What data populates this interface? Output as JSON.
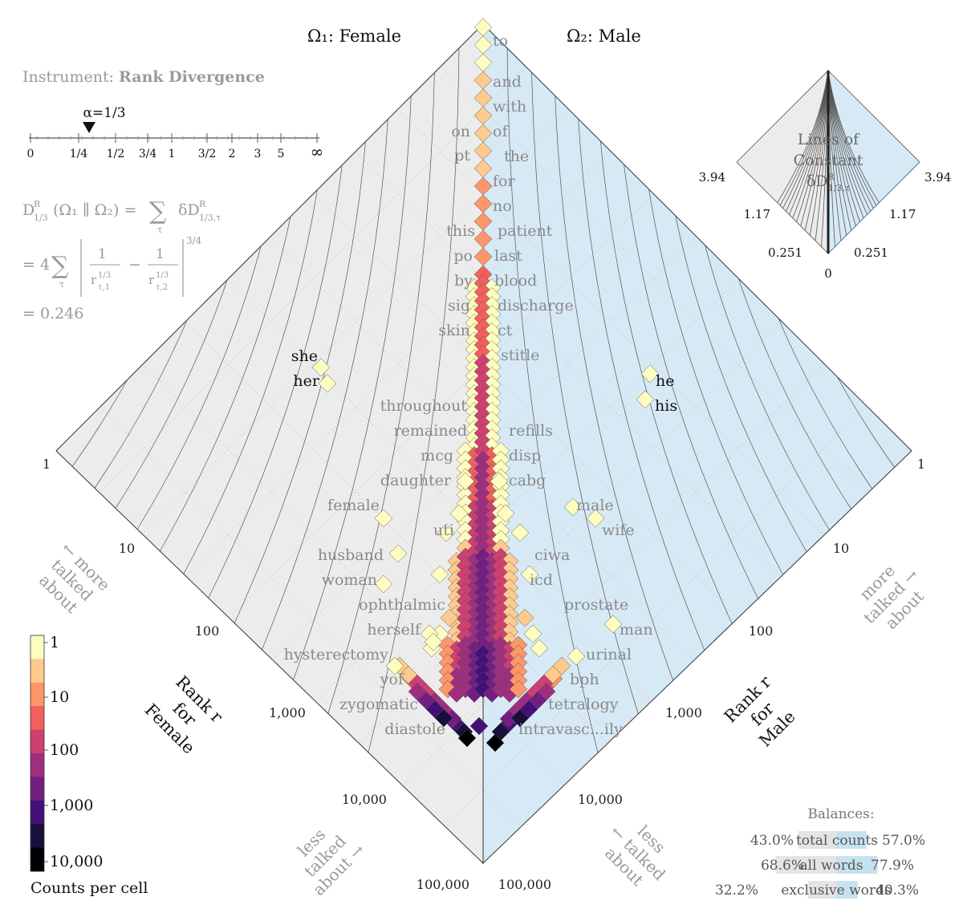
{
  "chart_data": {
    "type": "allotaxonograph",
    "titles": {
      "left": "Ω₁: Female",
      "right": "Ω₂: Male"
    },
    "instrument": {
      "prefix": "Instrument:",
      "name": "Rank Divergence"
    },
    "alpha": {
      "label": "α=1/3",
      "ticks": [
        "0",
        "1/4",
        "1/2",
        "3/4",
        "1",
        "3/2",
        "2",
        "3",
        "5",
        "∞"
      ],
      "value": "1/3"
    },
    "formula": {
      "line1": "D^R_1/3(Ω₁ ‖ Ω₂) = Σ_τ δD^R_1/3,τ",
      "line2": "= 4 Σ_τ | 1/r_τ,1^(1/3) − 1/r_τ,2^(1/3) |^(3/4)",
      "result": "= 0.246"
    },
    "axes": {
      "left_label": [
        "Rank r",
        "for",
        "Female"
      ],
      "right_label": [
        "Rank r",
        "for",
        "Male"
      ],
      "tick_labels": [
        "1",
        "10",
        "100",
        "1,000",
        "10,000",
        "100,000"
      ],
      "more_left": [
        "← more",
        "talked",
        "about"
      ],
      "more_right": [
        "more",
        "talked →",
        "about"
      ],
      "less_left": [
        "less",
        "talked",
        "about →"
      ],
      "less_right": [
        "less",
        "← talked",
        "about"
      ]
    },
    "left_words": [
      "on",
      "pt",
      "this",
      "po",
      "by",
      "sig",
      "skin",
      "she",
      "her",
      "throughout",
      "remained",
      "mcg",
      "daughter",
      "female",
      "uti",
      "husband",
      "woman",
      "ophthalmic",
      "herself",
      "hysterectomy",
      "yof",
      "zygomatic",
      "diastole"
    ],
    "right_words": [
      "to",
      "and",
      "with",
      "of",
      "the",
      "for",
      "no",
      "patient",
      "last",
      "blood",
      "discharge",
      "ct",
      "stitle",
      "he",
      "his",
      "refills",
      "disp",
      "cabg",
      "male",
      "wife",
      "ciwa",
      "icd",
      "prostate",
      "man",
      "urinal",
      "bph",
      "tetralogy",
      "intravasc...ily"
    ],
    "highlight_words": [
      "she",
      "her",
      "he",
      "his"
    ],
    "colorbar": {
      "title": "Counts per cell",
      "labels": [
        "1",
        "10",
        "100",
        "1,000",
        "10,000"
      ],
      "colors": [
        "#fcfdbf",
        "#feca8d",
        "#fd9668",
        "#f1605d",
        "#cd4071",
        "#9e2f7f",
        "#721f81",
        "#440f76",
        "#180f3d",
        "#000004"
      ]
    },
    "inset": {
      "title": [
        "Lines of",
        "Constant",
        "δD^R_1/3,τ"
      ],
      "labels_left": [
        "3.94",
        "1.17",
        "0.251"
      ],
      "labels_right": [
        "3.94",
        "1.17",
        "0.251"
      ],
      "bottom": "0"
    },
    "balances": {
      "title": "Balances:",
      "rows": [
        {
          "left": "43.0%",
          "label": "total counts",
          "right": "57.0%",
          "left_frac": 0.43,
          "right_frac": 0.57
        },
        {
          "left": "68.6%",
          "label": "all words",
          "right": "77.9%",
          "left_frac": 0.686,
          "right_frac": 0.779
        },
        {
          "left": "32.2%",
          "label": "exclusive words",
          "right": "40.3%",
          "left_frac": 0.322,
          "right_frac": 0.403
        }
      ]
    },
    "colors": {
      "left_panel": "#ececec",
      "right_panel": "#d6e9f5"
    }
  }
}
